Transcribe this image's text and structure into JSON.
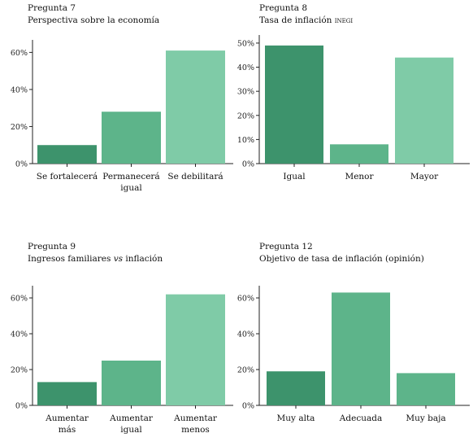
{
  "colors": {
    "dark": "#3d936c",
    "mid": "#5db48a",
    "light": "#7fcba7",
    "axis": "#222222"
  },
  "chart_data": [
    {
      "type": "bar",
      "title_prefix": "Pregunta 7",
      "title": "Perspectiva sobre la economía",
      "categories": [
        "Se fortalecerá",
        "Permanecerá\nigual",
        "Se debilitará"
      ],
      "values": [
        10,
        28,
        61
      ],
      "colors": [
        "dark",
        "mid",
        "light"
      ],
      "ylim": [
        0,
        65
      ],
      "yticks": [
        0,
        20,
        40,
        60
      ],
      "ytick_labels": [
        "0%",
        "20%",
        "40%",
        "60%"
      ],
      "xlabel": "",
      "ylabel": ""
    },
    {
      "type": "bar",
      "title_prefix": "Pregunta 8",
      "title": "Tasa de inflación INEGI",
      "categories": [
        "Igual",
        "Menor",
        "Mayor"
      ],
      "values": [
        49,
        8,
        44
      ],
      "colors": [
        "dark",
        "mid",
        "light"
      ],
      "ylim": [
        0,
        52
      ],
      "yticks": [
        0,
        10,
        20,
        30,
        40,
        50
      ],
      "ytick_labels": [
        "0%",
        "10%",
        "20%",
        "30%",
        "40%",
        "50%"
      ],
      "xlabel": "",
      "ylabel": ""
    },
    {
      "type": "bar",
      "title_prefix": "Pregunta 9",
      "title": "Ingresos familiares vs inflación",
      "categories": [
        "Aumentar\nmás",
        "Aumentar\nigual",
        "Aumentar\nmenos"
      ],
      "values": [
        13,
        25,
        62
      ],
      "colors": [
        "dark",
        "mid",
        "light"
      ],
      "ylim": [
        0,
        65
      ],
      "yticks": [
        0,
        20,
        40,
        60
      ],
      "ytick_labels": [
        "0%",
        "20%",
        "40%",
        "60%"
      ],
      "xlabel": "",
      "ylabel": ""
    },
    {
      "type": "bar",
      "title_prefix": "Pregunta 12",
      "title": "Objetivo de tasa de inflación (opinión)",
      "categories": [
        "Muy alta",
        "Adecuada",
        "Muy baja"
      ],
      "values": [
        19,
        63,
        18
      ],
      "colors": [
        "dark",
        "mid",
        "mid"
      ],
      "ylim": [
        0,
        65
      ],
      "yticks": [
        0,
        20,
        40,
        60
      ],
      "ytick_labels": [
        "0%",
        "20%",
        "40%",
        "60%"
      ],
      "xlabel": "",
      "ylabel": ""
    }
  ]
}
